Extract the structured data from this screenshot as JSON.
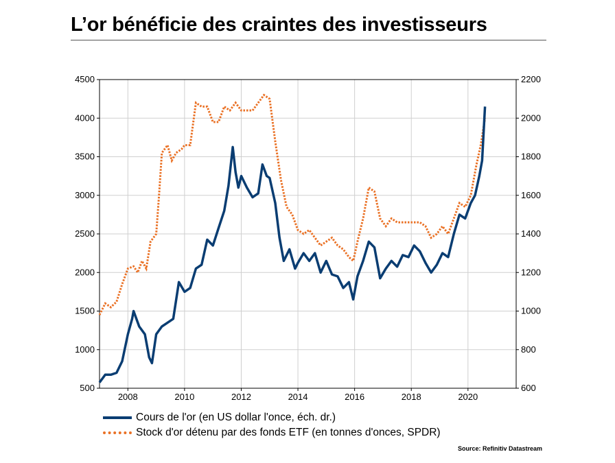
{
  "title": "L’or bénéficie des craintes des investisseurs",
  "source": "Source: Refinitiv Datastream",
  "colors": {
    "gold_price": "#0a3d72",
    "etf_stock": "#ea7125"
  },
  "legend": [
    {
      "label": "Cours de l'or (en US dollar l'once, éch. dr.)",
      "style": "solid"
    },
    {
      "label": "Stock d'or détenu par des fonds ETF (en tonnes d'onces, SPDR)",
      "style": "dotted"
    }
  ],
  "chart_data": {
    "type": "line",
    "x_range": [
      2007.0,
      2021.7
    ],
    "x_ticks": [
      "2008",
      "2010",
      "2012",
      "2014",
      "2016",
      "2018",
      "2020"
    ],
    "x_tick_values": [
      2008,
      2010,
      2012,
      2014,
      2016,
      2018,
      2020
    ],
    "y_left": {
      "range": [
        500,
        4500
      ],
      "ticks": [
        "500",
        "1000",
        "1500",
        "2000",
        "2500",
        "3000",
        "3500",
        "4000",
        "4500"
      ]
    },
    "y_right": {
      "range": [
        600,
        2200
      ],
      "ticks": [
        "600",
        "800",
        "1000",
        "1200",
        "1400",
        "1600",
        "1800",
        "2000",
        "2200"
      ]
    },
    "grid": true,
    "series": [
      {
        "name": "Cours de l'or (en US dollar l'once, éch. dr.)",
        "axis": "right",
        "points": [
          [
            2007.0,
            630
          ],
          [
            2007.2,
            670
          ],
          [
            2007.4,
            670
          ],
          [
            2007.6,
            680
          ],
          [
            2007.8,
            740
          ],
          [
            2008.0,
            880
          ],
          [
            2008.15,
            960
          ],
          [
            2008.2,
            1000
          ],
          [
            2008.4,
            920
          ],
          [
            2008.6,
            880
          ],
          [
            2008.75,
            760
          ],
          [
            2008.85,
            730
          ],
          [
            2009.0,
            880
          ],
          [
            2009.2,
            920
          ],
          [
            2009.4,
            940
          ],
          [
            2009.6,
            960
          ],
          [
            2009.8,
            1150
          ],
          [
            2010.0,
            1100
          ],
          [
            2010.2,
            1120
          ],
          [
            2010.4,
            1220
          ],
          [
            2010.6,
            1240
          ],
          [
            2010.8,
            1370
          ],
          [
            2011.0,
            1340
          ],
          [
            2011.2,
            1430
          ],
          [
            2011.4,
            1520
          ],
          [
            2011.55,
            1650
          ],
          [
            2011.7,
            1850
          ],
          [
            2011.8,
            1720
          ],
          [
            2011.9,
            1640
          ],
          [
            2012.0,
            1700
          ],
          [
            2012.2,
            1640
          ],
          [
            2012.4,
            1590
          ],
          [
            2012.6,
            1610
          ],
          [
            2012.75,
            1760
          ],
          [
            2012.9,
            1700
          ],
          [
            2013.0,
            1690
          ],
          [
            2013.2,
            1560
          ],
          [
            2013.35,
            1380
          ],
          [
            2013.5,
            1260
          ],
          [
            2013.7,
            1320
          ],
          [
            2013.9,
            1220
          ],
          [
            2014.0,
            1250
          ],
          [
            2014.2,
            1300
          ],
          [
            2014.4,
            1260
          ],
          [
            2014.6,
            1300
          ],
          [
            2014.8,
            1200
          ],
          [
            2015.0,
            1260
          ],
          [
            2015.2,
            1190
          ],
          [
            2015.4,
            1180
          ],
          [
            2015.6,
            1120
          ],
          [
            2015.8,
            1150
          ],
          [
            2015.95,
            1060
          ],
          [
            2016.1,
            1180
          ],
          [
            2016.3,
            1260
          ],
          [
            2016.5,
            1360
          ],
          [
            2016.7,
            1330
          ],
          [
            2016.9,
            1170
          ],
          [
            2017.1,
            1220
          ],
          [
            2017.3,
            1260
          ],
          [
            2017.5,
            1230
          ],
          [
            2017.7,
            1290
          ],
          [
            2017.9,
            1280
          ],
          [
            2018.1,
            1340
          ],
          [
            2018.3,
            1310
          ],
          [
            2018.5,
            1250
          ],
          [
            2018.7,
            1200
          ],
          [
            2018.9,
            1240
          ],
          [
            2019.1,
            1300
          ],
          [
            2019.3,
            1280
          ],
          [
            2019.5,
            1400
          ],
          [
            2019.7,
            1500
          ],
          [
            2019.9,
            1480
          ],
          [
            2020.1,
            1560
          ],
          [
            2020.25,
            1600
          ],
          [
            2020.4,
            1700
          ],
          [
            2020.5,
            1780
          ],
          [
            2020.6,
            2060
          ]
        ]
      },
      {
        "name": "Stock d'or détenu par des fonds ETF (en tonnes d'onces, SPDR)",
        "axis": "left",
        "points": [
          [
            2007.0,
            1450
          ],
          [
            2007.2,
            1600
          ],
          [
            2007.4,
            1550
          ],
          [
            2007.6,
            1620
          ],
          [
            2007.8,
            1850
          ],
          [
            2008.0,
            2050
          ],
          [
            2008.2,
            2080
          ],
          [
            2008.35,
            2000
          ],
          [
            2008.5,
            2150
          ],
          [
            2008.65,
            2050
          ],
          [
            2008.8,
            2400
          ],
          [
            2009.0,
            2500
          ],
          [
            2009.1,
            3000
          ],
          [
            2009.2,
            3550
          ],
          [
            2009.4,
            3650
          ],
          [
            2009.55,
            3450
          ],
          [
            2009.7,
            3550
          ],
          [
            2009.9,
            3600
          ],
          [
            2010.0,
            3650
          ],
          [
            2010.2,
            3650
          ],
          [
            2010.4,
            4200
          ],
          [
            2010.6,
            4150
          ],
          [
            2010.8,
            4150
          ],
          [
            2011.0,
            3950
          ],
          [
            2011.2,
            3950
          ],
          [
            2011.4,
            4150
          ],
          [
            2011.6,
            4100
          ],
          [
            2011.8,
            4200
          ],
          [
            2012.0,
            4100
          ],
          [
            2012.2,
            4100
          ],
          [
            2012.4,
            4100
          ],
          [
            2012.6,
            4200
          ],
          [
            2012.8,
            4300
          ],
          [
            2013.0,
            4250
          ],
          [
            2013.2,
            3700
          ],
          [
            2013.4,
            3200
          ],
          [
            2013.6,
            2850
          ],
          [
            2013.8,
            2750
          ],
          [
            2014.0,
            2550
          ],
          [
            2014.2,
            2500
          ],
          [
            2014.4,
            2550
          ],
          [
            2014.6,
            2450
          ],
          [
            2014.8,
            2350
          ],
          [
            2015.0,
            2400
          ],
          [
            2015.2,
            2450
          ],
          [
            2015.4,
            2350
          ],
          [
            2015.6,
            2300
          ],
          [
            2015.8,
            2200
          ],
          [
            2015.95,
            2150
          ],
          [
            2016.1,
            2400
          ],
          [
            2016.3,
            2700
          ],
          [
            2016.5,
            3100
          ],
          [
            2016.7,
            3050
          ],
          [
            2016.9,
            2700
          ],
          [
            2017.1,
            2600
          ],
          [
            2017.3,
            2700
          ],
          [
            2017.5,
            2650
          ],
          [
            2017.7,
            2650
          ],
          [
            2017.9,
            2650
          ],
          [
            2018.1,
            2650
          ],
          [
            2018.3,
            2650
          ],
          [
            2018.5,
            2600
          ],
          [
            2018.7,
            2450
          ],
          [
            2018.9,
            2500
          ],
          [
            2019.1,
            2600
          ],
          [
            2019.3,
            2500
          ],
          [
            2019.5,
            2700
          ],
          [
            2019.7,
            2900
          ],
          [
            2019.9,
            2850
          ],
          [
            2020.1,
            3000
          ],
          [
            2020.3,
            3400
          ],
          [
            2020.45,
            3650
          ],
          [
            2020.6,
            4000
          ]
        ]
      }
    ]
  }
}
